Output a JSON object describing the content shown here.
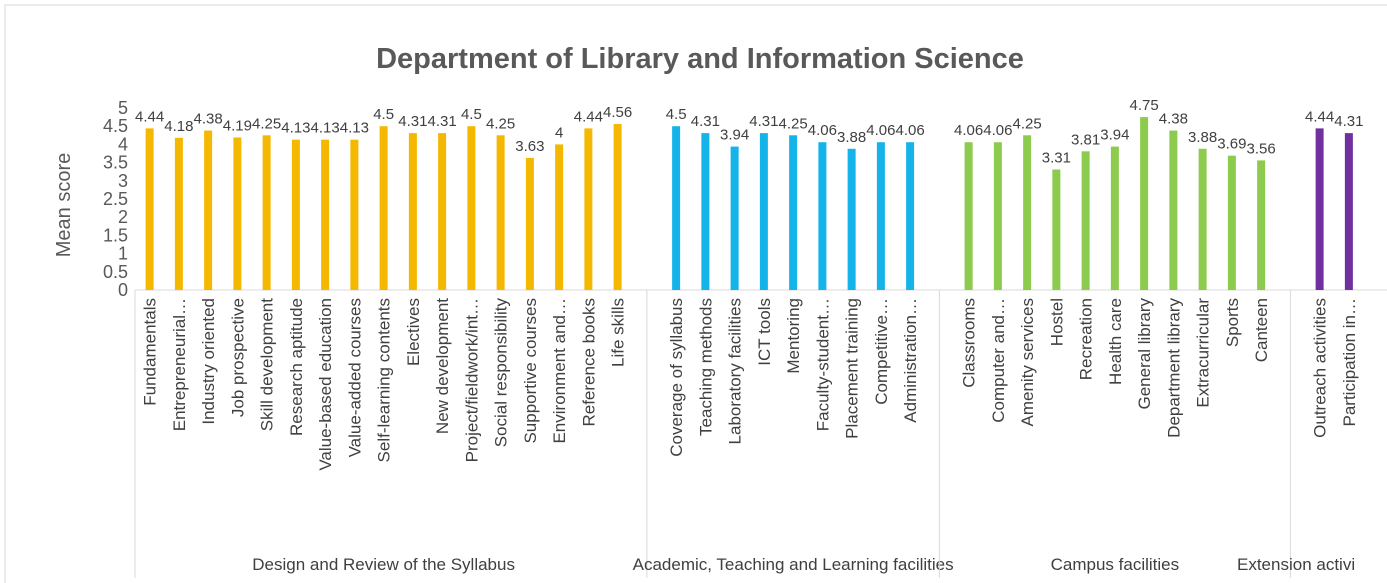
{
  "chart_data": {
    "type": "bar",
    "title": "Department of Library and Information Science",
    "y_label": "Mean score",
    "ylim": [
      0,
      5
    ],
    "yticks": [
      0,
      0.5,
      1,
      1.5,
      2,
      2.5,
      3,
      3.5,
      4,
      4.5,
      5
    ],
    "grid": false,
    "series": [
      {
        "name": "Design and Review of the Syllabus",
        "color": "#f5b800",
        "categories": [
          "Fundamentals",
          "Entrepreneurial…",
          "Industry oriented",
          "Job prospective",
          "Skill development",
          "Research aptitude",
          "Value-based education",
          "Value-added courses",
          "Self-learning contents",
          "Electives",
          "New development",
          "Project/fieldwork/int…",
          "Social responsibility",
          "Supportive courses",
          "Environment and…",
          "Reference books",
          "Life skills"
        ],
        "values": [
          4.44,
          4.18,
          4.38,
          4.19,
          4.25,
          4.13,
          4.13,
          4.13,
          4.5,
          4.31,
          4.31,
          4.5,
          4.25,
          3.63,
          4,
          4.44,
          4.56
        ]
      },
      {
        "name": "Academic, Teaching and Learning facilities",
        "color": "#14b4ea",
        "categories": [
          "Coverage of syllabus",
          "Teaching methods",
          "Laboratory facilities",
          "ICT tools",
          "Mentoring",
          "Faculty-student…",
          "Placement training",
          "Competitive…",
          "Administration…"
        ],
        "values": [
          4.5,
          4.31,
          3.94,
          4.31,
          4.25,
          4.06,
          3.88,
          4.06,
          4.06
        ]
      },
      {
        "name": "Campus facilities",
        "color": "#8ccb4e",
        "categories": [
          "Classrooms",
          "Computer and…",
          "Amenity services",
          "Hostel",
          "Recreation",
          "Health care",
          "General library",
          "Department library",
          "Extracurricular",
          "Sports",
          "Canteen"
        ],
        "values": [
          4.06,
          4.06,
          4.25,
          3.31,
          3.81,
          3.94,
          4.75,
          4.38,
          3.88,
          3.69,
          3.56
        ]
      },
      {
        "name": "Extension activi",
        "color": "#7030a0",
        "categories": [
          "Outreach activities",
          "Participation in…"
        ],
        "values": [
          4.44,
          4.31
        ]
      }
    ]
  }
}
